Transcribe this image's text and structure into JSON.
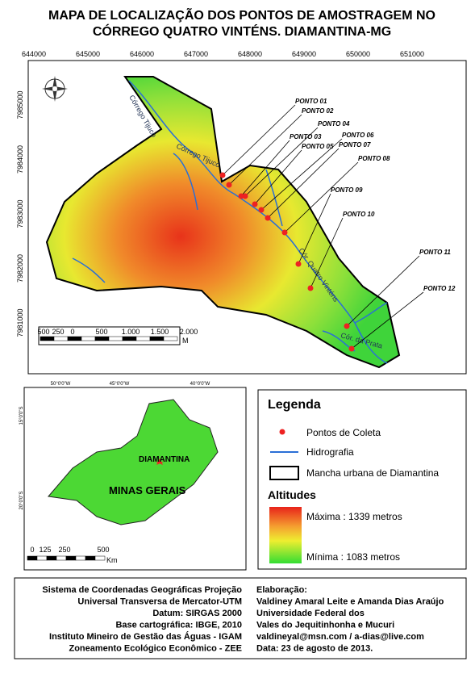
{
  "header": {
    "title_line1": "MAPA DE LOCALIZAÇÃO DOS PONTOS DE AMOSTRAGEM NO",
    "title_line2": "CÓRREGO QUATRO VINTÉNS. DIAMANTINA-MG"
  },
  "main_map": {
    "x_labels": [
      "644000",
      "645000",
      "646000",
      "647000",
      "648000",
      "649000",
      "650000",
      "651000"
    ],
    "y_labels": [
      "7985000",
      "7984000",
      "7983000",
      "7982000",
      "7981000"
    ],
    "rivers": [
      "Córrego Tijuco",
      "Córrego Tijuco",
      "Cór. Quatro Vinténs",
      "Cór. da Prata"
    ],
    "points": [
      "PONTO 01",
      "PONTO 02",
      "PONTO 03",
      "PONTO 04",
      "PONTO 05",
      "PONTO 06",
      "PONTO 07",
      "PONTO 08",
      "PONTO 09",
      "PONTO 10",
      "PONTO 11",
      "PONTO 12"
    ],
    "scale_labels": [
      "500",
      "250",
      "0",
      "500",
      "1.000",
      "1.500",
      "2.000"
    ],
    "scale_unit": "M"
  },
  "inset_map": {
    "x_labels": [
      "50°0'0\"W",
      "45°0'0\"W",
      "40°0'0\"W"
    ],
    "y_labels": [
      "15°0'0\"S",
      "20°0'0\"S"
    ],
    "city": "DIAMANTINA",
    "state": "MINAS GERAIS",
    "scale_labels": [
      "0",
      "125",
      "250",
      "500"
    ],
    "scale_unit": "Km"
  },
  "legend": {
    "title": "Legenda",
    "items": [
      "Pontos de Coleta",
      "Hidrografia",
      "Mancha urbana de Diamantina"
    ],
    "altitudes_title": "Altitudes",
    "max": "Máxima : 1339 metros",
    "min": "Mínima : 1083 metros"
  },
  "footer": {
    "left": [
      "Sistema de Coordenadas Geográficas Projeção",
      "Universal Transversa de Mercator-UTM",
      "Datum: SIRGAS 2000",
      "Base cartográfica: IBGE, 2010",
      "Instituto Mineiro de Gestão das Águas - IGAM",
      "Zoneamento Ecológico Econômico - ZEE"
    ],
    "right": [
      "Elaboração:",
      "Valdiney Amaral Leite e Amanda Dias Araújo",
      "Universidade Federal dos",
      "Vales do Jequitinhonha e Mucuri",
      "valdineyal@msn.com / a-dias@live.com",
      "Data: 23 de agosto de 2013."
    ]
  }
}
